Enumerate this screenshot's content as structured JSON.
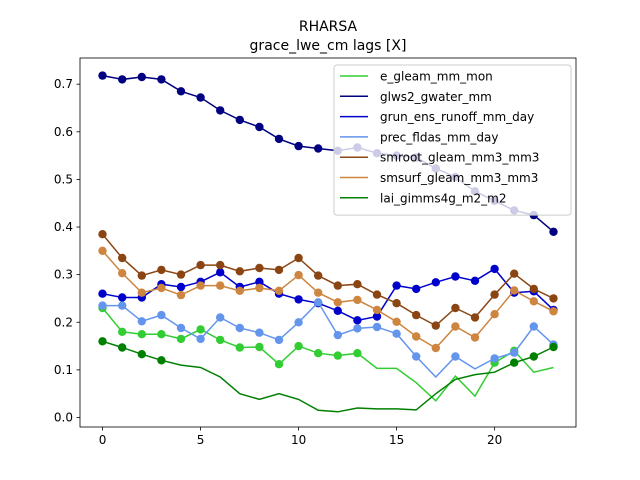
{
  "chart_data": {
    "type": "line",
    "title": "RHARSA",
    "subtitle": "grace_lwe_cm lags [X]",
    "xlabel": "",
    "ylabel": "",
    "xlim": [
      -1.15,
      24.15
    ],
    "ylim": [
      -0.02,
      0.755
    ],
    "xticks": [
      0,
      5,
      10,
      15,
      20
    ],
    "yticks": [
      0.0,
      0.1,
      0.2,
      0.3,
      0.4,
      0.5,
      0.6,
      0.7
    ],
    "ytick_labels": [
      "0.0",
      "0.1",
      "0.2",
      "0.3",
      "0.4",
      "0.5",
      "0.6",
      "0.7"
    ],
    "grid": false,
    "legend_position": "top-right",
    "x": [
      0,
      1,
      2,
      3,
      4,
      5,
      6,
      7,
      8,
      9,
      10,
      11,
      12,
      13,
      14,
      15,
      16,
      17,
      18,
      19,
      20,
      21,
      22,
      23
    ],
    "series": [
      {
        "name": "e_gleam_mm_mon",
        "color": "#32cd32",
        "values": [
          0.23,
          0.18,
          0.175,
          0.175,
          0.165,
          0.185,
          0.163,
          0.147,
          0.148,
          0.112,
          0.15,
          0.135,
          0.13,
          0.135,
          0.103,
          0.103,
          0.073,
          0.035,
          0.087,
          0.045,
          0.115,
          0.14,
          0.095,
          0.105
        ],
        "markers": [
          true,
          true,
          true,
          true,
          true,
          true,
          true,
          true,
          true,
          true,
          true,
          true,
          true,
          true,
          false,
          false,
          false,
          false,
          false,
          false,
          true,
          true,
          false,
          false
        ]
      },
      {
        "name": "glws2_gwater_mm",
        "color": "#000080",
        "values": [
          0.718,
          0.71,
          0.715,
          0.71,
          0.685,
          0.672,
          0.645,
          0.625,
          0.61,
          0.585,
          0.57,
          0.565,
          0.56,
          0.567,
          0.555,
          0.55,
          0.546,
          0.523,
          0.505,
          0.475,
          0.455,
          0.435,
          0.425,
          0.39
        ],
        "markers": [
          true,
          true,
          true,
          true,
          true,
          true,
          true,
          true,
          true,
          true,
          true,
          true,
          true,
          true,
          true,
          true,
          true,
          true,
          true,
          true,
          true,
          true,
          true,
          true
        ]
      },
      {
        "name": "grun_ens_runoff_mm_day",
        "color": "#0000cd",
        "values": [
          0.26,
          0.252,
          0.252,
          0.28,
          0.274,
          0.285,
          0.305,
          0.274,
          0.285,
          0.26,
          0.248,
          0.24,
          0.224,
          0.204,
          0.212,
          0.277,
          0.27,
          0.284,
          0.296,
          0.287,
          0.312,
          0.262,
          0.265,
          0.226
        ],
        "markers": [
          true,
          true,
          true,
          true,
          true,
          true,
          true,
          true,
          true,
          true,
          true,
          true,
          true,
          true,
          true,
          true,
          true,
          true,
          true,
          true,
          true,
          true,
          true,
          true
        ]
      },
      {
        "name": "prec_fldas_mm_day",
        "color": "#6495ed",
        "values": [
          0.235,
          0.235,
          0.202,
          0.215,
          0.188,
          0.165,
          0.21,
          0.188,
          0.178,
          0.163,
          0.2,
          0.242,
          0.173,
          0.187,
          0.19,
          0.176,
          0.128,
          0.085,
          0.128,
          0.102,
          0.124,
          0.136,
          0.191,
          0.153
        ],
        "markers": [
          true,
          true,
          true,
          true,
          true,
          true,
          true,
          true,
          true,
          true,
          true,
          true,
          true,
          true,
          true,
          true,
          true,
          false,
          true,
          false,
          true,
          true,
          true,
          true
        ]
      },
      {
        "name": "smroot_gleam_mm3_mm3",
        "color": "#8b4513",
        "values": [
          0.385,
          0.335,
          0.298,
          0.31,
          0.3,
          0.32,
          0.32,
          0.307,
          0.314,
          0.31,
          0.335,
          0.298,
          0.277,
          0.28,
          0.258,
          0.24,
          0.215,
          0.193,
          0.23,
          0.21,
          0.258,
          0.302,
          0.27,
          0.25
        ],
        "markers": [
          true,
          true,
          true,
          true,
          true,
          true,
          true,
          true,
          true,
          true,
          true,
          true,
          true,
          true,
          true,
          true,
          true,
          true,
          true,
          true,
          true,
          true,
          true,
          true
        ]
      },
      {
        "name": "smsurf_gleam_mm3_mm3",
        "color": "#cd853f",
        "values": [
          0.35,
          0.303,
          0.262,
          0.272,
          0.257,
          0.277,
          0.277,
          0.266,
          0.272,
          0.266,
          0.299,
          0.262,
          0.242,
          0.247,
          0.226,
          0.201,
          0.17,
          0.146,
          0.191,
          0.168,
          0.217,
          0.267,
          0.244,
          0.223
        ],
        "markers": [
          true,
          true,
          true,
          true,
          true,
          true,
          true,
          true,
          true,
          true,
          true,
          true,
          true,
          true,
          true,
          true,
          true,
          true,
          true,
          true,
          true,
          true,
          true,
          true
        ]
      },
      {
        "name": "lai_gimms4g_m2_m2",
        "color": "#008000",
        "values": [
          0.16,
          0.147,
          0.133,
          0.12,
          0.11,
          0.105,
          0.085,
          0.05,
          0.038,
          0.05,
          0.038,
          0.015,
          0.012,
          0.02,
          0.018,
          0.018,
          0.016,
          0.05,
          0.08,
          0.09,
          0.095,
          0.115,
          0.128,
          0.148
        ],
        "markers": [
          true,
          true,
          true,
          true,
          false,
          false,
          false,
          false,
          false,
          false,
          false,
          false,
          false,
          false,
          false,
          false,
          false,
          false,
          false,
          false,
          false,
          true,
          true,
          true
        ]
      }
    ]
  }
}
